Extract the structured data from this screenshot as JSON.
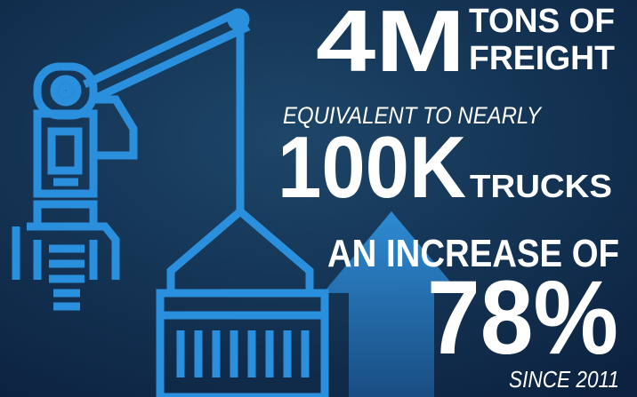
{
  "headline": {
    "value": "4M",
    "unit_top": "TONS OF",
    "unit_bottom": "FREIGHT"
  },
  "equivalent": {
    "lead": "EQUIVALENT TO NEARLY",
    "value": "100K",
    "unit": "TRUCKS"
  },
  "increase": {
    "lead": "AN INCREASE OF",
    "value": "78%",
    "note": "SINCE 2011"
  }
}
